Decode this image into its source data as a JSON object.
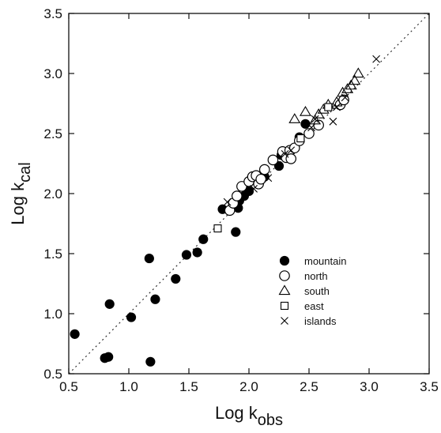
{
  "chart_data": {
    "type": "scatter",
    "xlabel": {
      "main": "Log k",
      "sub": "obs"
    },
    "ylabel": {
      "main": "Log k",
      "sub": "cal"
    },
    "xlim": [
      0.5,
      3.5
    ],
    "ylim": [
      0.5,
      3.5
    ],
    "xticks": [
      "0.5",
      "1.0",
      "1.5",
      "2.0",
      "2.5",
      "3.0",
      "3.5"
    ],
    "yticks": [
      "0.5",
      "1.0",
      "1.5",
      "2.0",
      "2.5",
      "3.0",
      "3.5"
    ],
    "grid": false,
    "legend_position": "lower-right",
    "reference_line": {
      "style": "dotted",
      "x": [
        0.5,
        3.5
      ],
      "y": [
        0.5,
        3.5
      ]
    },
    "series": [
      {
        "name": "mountain",
        "marker": "filled-circle",
        "x": [
          0.55,
          0.8,
          0.83,
          0.84,
          1.02,
          1.17,
          1.18,
          1.22,
          1.39,
          1.48,
          1.57,
          1.62,
          1.78,
          1.89,
          1.91,
          1.92,
          1.96,
          1.98,
          2.0,
          2.1,
          2.13,
          2.25,
          2.27,
          2.42,
          2.47
        ],
        "y": [
          0.83,
          0.63,
          0.64,
          1.08,
          0.97,
          1.46,
          0.6,
          1.12,
          1.29,
          1.49,
          1.51,
          1.62,
          1.87,
          1.68,
          1.88,
          1.94,
          1.98,
          2.04,
          2.02,
          2.12,
          2.14,
          2.23,
          2.32,
          2.47,
          2.58
        ]
      },
      {
        "name": "north",
        "marker": "open-circle",
        "x": [
          1.84,
          1.87,
          1.9,
          1.94,
          2.0,
          2.03,
          2.06,
          2.08,
          2.1,
          2.13,
          2.2,
          2.28,
          2.31,
          2.34,
          2.35,
          2.38,
          2.42,
          2.5,
          2.58,
          2.76,
          2.79
        ],
        "y": [
          1.86,
          1.92,
          1.98,
          2.06,
          2.1,
          2.14,
          2.15,
          2.08,
          2.12,
          2.2,
          2.28,
          2.35,
          2.3,
          2.36,
          2.29,
          2.38,
          2.44,
          2.5,
          2.57,
          2.74,
          2.78
        ]
      },
      {
        "name": "south",
        "marker": "open-triangle",
        "x": [
          2.38,
          2.47,
          2.55,
          2.58,
          2.62,
          2.66,
          2.73,
          2.78,
          2.82,
          2.85,
          2.88,
          2.91
        ],
        "y": [
          2.62,
          2.68,
          2.61,
          2.66,
          2.7,
          2.74,
          2.76,
          2.84,
          2.87,
          2.9,
          2.94,
          3.0
        ]
      },
      {
        "name": "east",
        "marker": "open-square",
        "x": [
          1.74,
          2.43,
          2.66
        ],
        "y": [
          1.71,
          2.46,
          2.72
        ]
      },
      {
        "name": "islands",
        "marker": "cross",
        "x": [
          1.82,
          2.04,
          2.16,
          2.3,
          2.35,
          2.52,
          2.55,
          2.7,
          2.73,
          2.8,
          3.06
        ],
        "y": [
          1.93,
          2.04,
          2.13,
          2.33,
          2.36,
          2.55,
          2.62,
          2.6,
          2.72,
          2.8,
          3.12
        ]
      }
    ]
  }
}
